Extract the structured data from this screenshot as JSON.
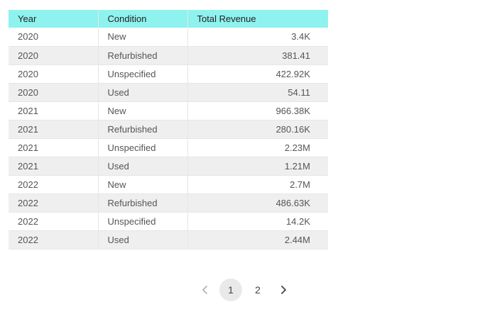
{
  "table": {
    "columns": [
      "Year",
      "Condition",
      "Total Revenue"
    ],
    "rows": [
      [
        "2020",
        "New",
        "3.4K"
      ],
      [
        "2020",
        "Refurbished",
        "381.41"
      ],
      [
        "2020",
        "Unspecified",
        "422.92K"
      ],
      [
        "2020",
        "Used",
        "54.11"
      ],
      [
        "2021",
        "New",
        "966.38K"
      ],
      [
        "2021",
        "Refurbished",
        "280.16K"
      ],
      [
        "2021",
        "Unspecified",
        "2.23M"
      ],
      [
        "2021",
        "Used",
        "1.21M"
      ],
      [
        "2022",
        "New",
        "2.7M"
      ],
      [
        "2022",
        "Refurbished",
        "486.63K"
      ],
      [
        "2022",
        "Unspecified",
        "14.2K"
      ],
      [
        "2022",
        "Used",
        "2.44M"
      ]
    ]
  },
  "pagination": {
    "pages": [
      "1",
      "2"
    ],
    "current_page": "1",
    "prev_icon": "chevron-left-icon",
    "next_icon": "chevron-right-icon"
  },
  "colors": {
    "header_bg": "#8ef2ee",
    "stripe_bg": "#efefef",
    "active_page_bg": "#e9e9e9"
  }
}
